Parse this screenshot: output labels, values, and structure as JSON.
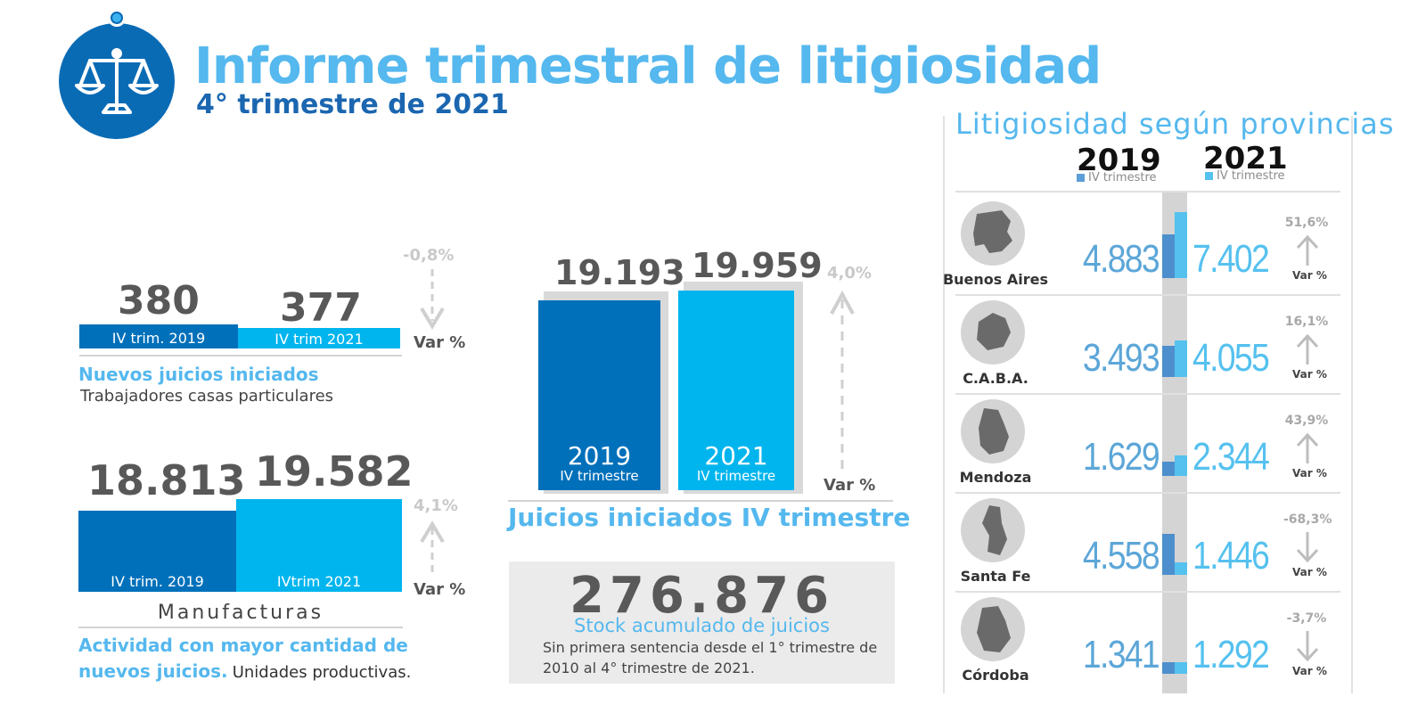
{
  "header": {
    "title": "Informe trimestral de litigiosidad",
    "subtitle": "4° trimestre de 2021",
    "logo_icon": "scales-of-justice-icon"
  },
  "colors": {
    "dark_blue": "#0070ba",
    "light_blue": "#00b5ee",
    "title_blue": "#55b8ee",
    "gray_text": "#585858"
  },
  "casas": {
    "value_2019": "380",
    "value_2021": "377",
    "label_2019": "IV trim. 2019",
    "label_2021": "IV trim 2021",
    "var_pct": "-0,8%",
    "var_label": "Var %",
    "title": "Nuevos juicios iniciados",
    "subtitle": "Trabajadores casas particulares"
  },
  "manufacturas": {
    "value_2019": "18.813",
    "value_2021": "19.582",
    "label_2019": "IV trim. 2019",
    "label_2021": "IVtrim 2021",
    "var_pct": "4,1%",
    "var_label": "Var %",
    "title": "Manufacturas",
    "desc_blue": "Actividad con mayor cantidad de nuevos juicios.",
    "desc_blue_1": "Actividad con mayor cantidad de",
    "desc_blue_2": "nuevos juicios.",
    "desc_dark": "Unidades productivas."
  },
  "juicios": {
    "value_2019": "19.193",
    "value_2021": "19.959",
    "year_2019": "2019",
    "year_2021": "2021",
    "sub_label": "IV trimestre",
    "var_pct": "4,0%",
    "var_label": "Var %",
    "title": "Juicios iniciados IV trimestre"
  },
  "stock": {
    "value": "276.876",
    "title": "Stock acumulado de juicios",
    "desc_1": "Sin primera sentencia desde el 1° trimestre de",
    "desc_2": "2010 al  4° trimestre de 2021."
  },
  "provincias": {
    "title": "Litigiosidad según provincias",
    "year_2019": "2019",
    "year_2021": "2021",
    "legend_2019": "IV trimestre",
    "legend_2021": "IV trimestre",
    "var_label": "Var %",
    "rows": [
      {
        "name": "Buenos Aires",
        "v2019": "4.883",
        "v2021": "7.402",
        "pct": "51,6%",
        "dir": "up",
        "icon": "buenos-aires-map-icon"
      },
      {
        "name": "C.A.B.A.",
        "v2019": "3.493",
        "v2021": "4.055",
        "pct": "16,1%",
        "dir": "up",
        "icon": "caba-map-icon"
      },
      {
        "name": "Mendoza",
        "v2019": "1.629",
        "v2021": "2.344",
        "pct": "43,9%",
        "dir": "up",
        "icon": "mendoza-map-icon"
      },
      {
        "name": "Santa Fe",
        "v2019": "4.558",
        "v2021": "1.446",
        "pct": "-68,3%",
        "dir": "down",
        "icon": "santa-fe-map-icon"
      },
      {
        "name": "Córdoba",
        "v2019": "1.341",
        "v2021": "1.292",
        "pct": "-3,7%",
        "dir": "down",
        "icon": "cordoba-map-icon"
      }
    ]
  },
  "chart_data": [
    {
      "type": "bar",
      "categories": [
        "IV trim. 2019",
        "IV trim 2021"
      ],
      "values": [
        380,
        377
      ],
      "title": "Nuevos juicios iniciados",
      "subtitle": "Trabajadores casas particulares"
    },
    {
      "type": "bar",
      "categories": [
        "IV trim. 2019",
        "IVtrim 2021"
      ],
      "values": [
        18813,
        19582
      ],
      "title": "Manufacturas"
    },
    {
      "type": "bar",
      "categories": [
        "2019 IV trimestre",
        "2021 IV trimestre"
      ],
      "values": [
        19193,
        19959
      ],
      "title": "Juicios iniciados IV trimestre"
    },
    {
      "type": "bar",
      "title": "Litigiosidad según provincias",
      "categories": [
        "Buenos Aires",
        "C.A.B.A.",
        "Mendoza",
        "Santa Fe",
        "Córdoba"
      ],
      "series": [
        {
          "name": "2019",
          "values": [
            4883,
            3493,
            1629,
            4558,
            1341
          ]
        },
        {
          "name": "2021",
          "values": [
            7402,
            4055,
            2344,
            1446,
            1292
          ]
        }
      ]
    }
  ]
}
